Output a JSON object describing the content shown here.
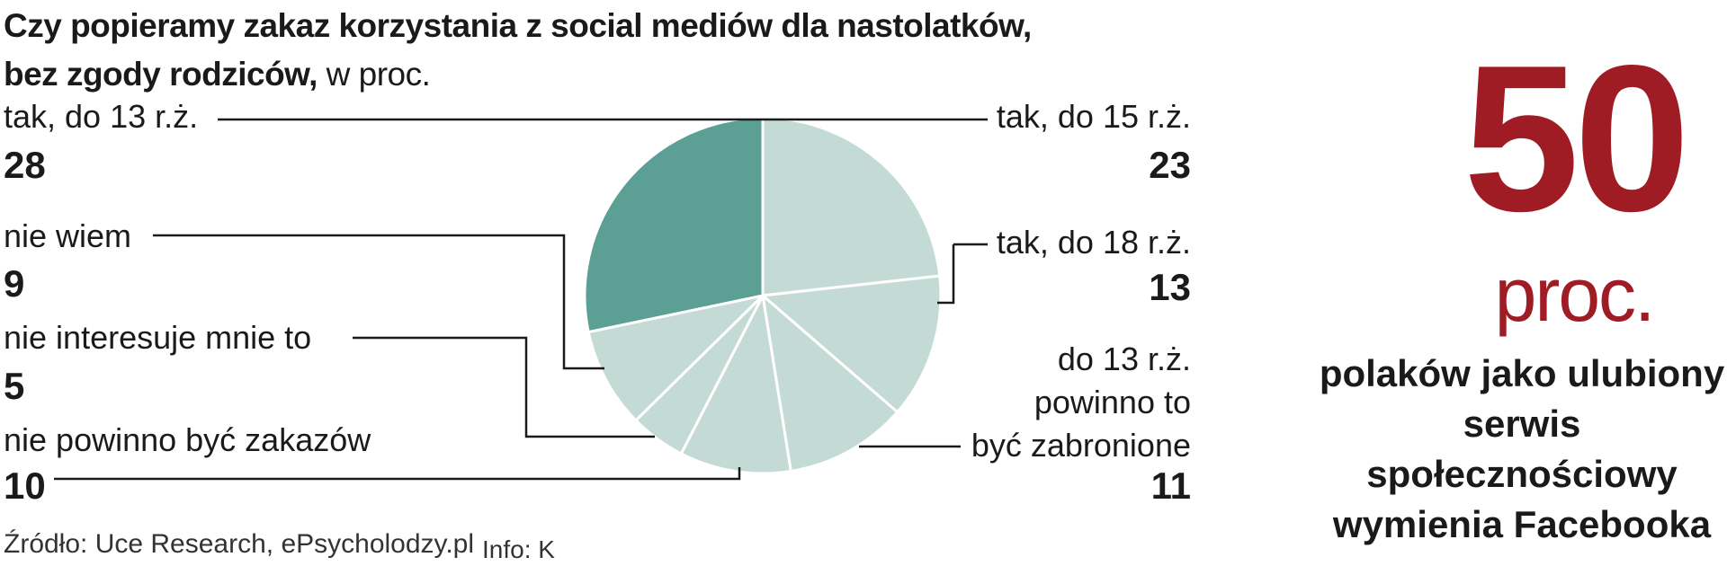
{
  "title": {
    "line1": "Czy popieramy zakaz korzystania z social mediów dla nastolatków,",
    "line2_bold": "bez zgody rodziców,",
    "line2_suffix": " w proc."
  },
  "chart_data": {
    "type": "pie",
    "title": "Czy popieramy zakaz korzystania z social mediów dla nastolatków, bez zgody rodziców, w proc.",
    "slices": [
      {
        "label": "tak, do 15 r.ż.",
        "value": 23,
        "color": "#c4dbd5"
      },
      {
        "label": "tak, do 18 r.ż.",
        "value": 13,
        "color": "#c4dbd5"
      },
      {
        "label": "do 13 r.ż. powinno to być zabronione",
        "value": 11,
        "color": "#c4dbd5"
      },
      {
        "label": "nie powinno być zakazów",
        "value": 10,
        "color": "#c4dbd5"
      },
      {
        "label": "nie interesuje mnie to",
        "value": 5,
        "color": "#c4dbd5"
      },
      {
        "label": "nie wiem",
        "value": 9,
        "color": "#c4dbd5"
      },
      {
        "label": "tak, do 13 r.ż.",
        "value": 28,
        "color": "#5b9f95"
      }
    ]
  },
  "labels": {
    "tak13": {
      "label": "tak, do 13 r.ż.",
      "value": "28"
    },
    "niewiem": {
      "label": "nie wiem",
      "value": "9"
    },
    "nieinteresuje": {
      "label": "nie interesuje mnie to",
      "value": "5"
    },
    "niepowinno": {
      "label": "nie powinno być zakazów",
      "value": "10"
    },
    "tak15": {
      "label": "tak, do 15 r.ż.",
      "value": "23"
    },
    "tak18": {
      "label": "tak, do 18 r.ż.",
      "value": "13"
    },
    "zabronione": {
      "line1": "do 13 r.ż.",
      "line2": "powinno to",
      "line3": "być zabronione",
      "value": "11"
    }
  },
  "source": "Źródło: Uce Research, ePsycholodzy.pl",
  "info": "Info: K",
  "highlight": {
    "number": "50",
    "unit": "proc.",
    "text": "polaków jako ulubiony serwis społecznościowy wymienia Facebooka",
    "color": "#a01c24"
  }
}
